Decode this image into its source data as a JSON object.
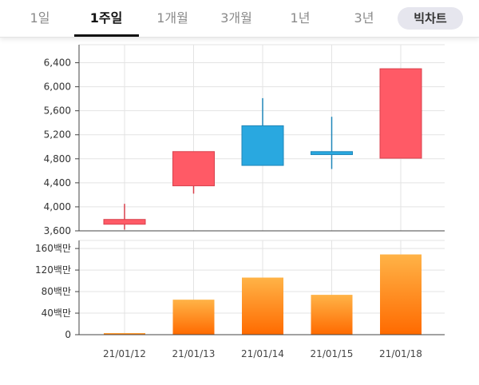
{
  "tabs": [
    {
      "label": "1일",
      "active": false
    },
    {
      "label": "1주일",
      "active": true
    },
    {
      "label": "1개월",
      "active": false
    },
    {
      "label": "3개월",
      "active": false
    },
    {
      "label": "1년",
      "active": false
    },
    {
      "label": "3년",
      "active": false
    }
  ],
  "candle_toggle": "빅차트",
  "colors": {
    "up": "#ff5a66",
    "down": "#29a8e0",
    "volume_top": "#ffb347",
    "volume_bottom": "#ff6a00",
    "grid": "#e3e3e3",
    "axis": "#444444"
  },
  "chart_data": [
    {
      "type": "candlestick",
      "categories": [
        "21/01/12",
        "21/01/13",
        "21/01/14",
        "21/01/15",
        "21/01/18"
      ],
      "candles": [
        {
          "date": "21/01/12",
          "open": 3710,
          "close": 3790,
          "high": 4050,
          "low": 3620,
          "direction": "up"
        },
        {
          "date": "21/01/13",
          "open": 4350,
          "close": 4920,
          "high": 4920,
          "low": 4220,
          "direction": "up"
        },
        {
          "date": "21/01/14",
          "open": 5350,
          "close": 4690,
          "high": 5810,
          "low": 4690,
          "direction": "down"
        },
        {
          "date": "21/01/15",
          "open": 4920,
          "close": 4870,
          "high": 5500,
          "low": 4630,
          "direction": "down"
        },
        {
          "date": "21/01/18",
          "open": 4810,
          "close": 6300,
          "high": 6300,
          "low": 4810,
          "direction": "up"
        }
      ],
      "yticks": [
        "3,600",
        "4,000",
        "4,400",
        "4,800",
        "5,200",
        "5,600",
        "6,000",
        "6,400"
      ],
      "ytick_values": [
        3600,
        4000,
        4400,
        4800,
        5200,
        5600,
        6000,
        6400
      ],
      "ylim": [
        3600,
        6700
      ],
      "grid": true
    },
    {
      "type": "bar",
      "categories": [
        "21/01/12",
        "21/01/13",
        "21/01/14",
        "21/01/15",
        "21/01/18"
      ],
      "values": [
        3000000,
        65000000,
        106000000,
        74000000,
        149000000
      ],
      "yticks": [
        "0",
        "40백만",
        "80백만",
        "120백만",
        "160백만"
      ],
      "ytick_values": [
        0,
        40000000,
        80000000,
        120000000,
        160000000
      ],
      "ylim": [
        0,
        175000000
      ],
      "grid": true
    }
  ]
}
